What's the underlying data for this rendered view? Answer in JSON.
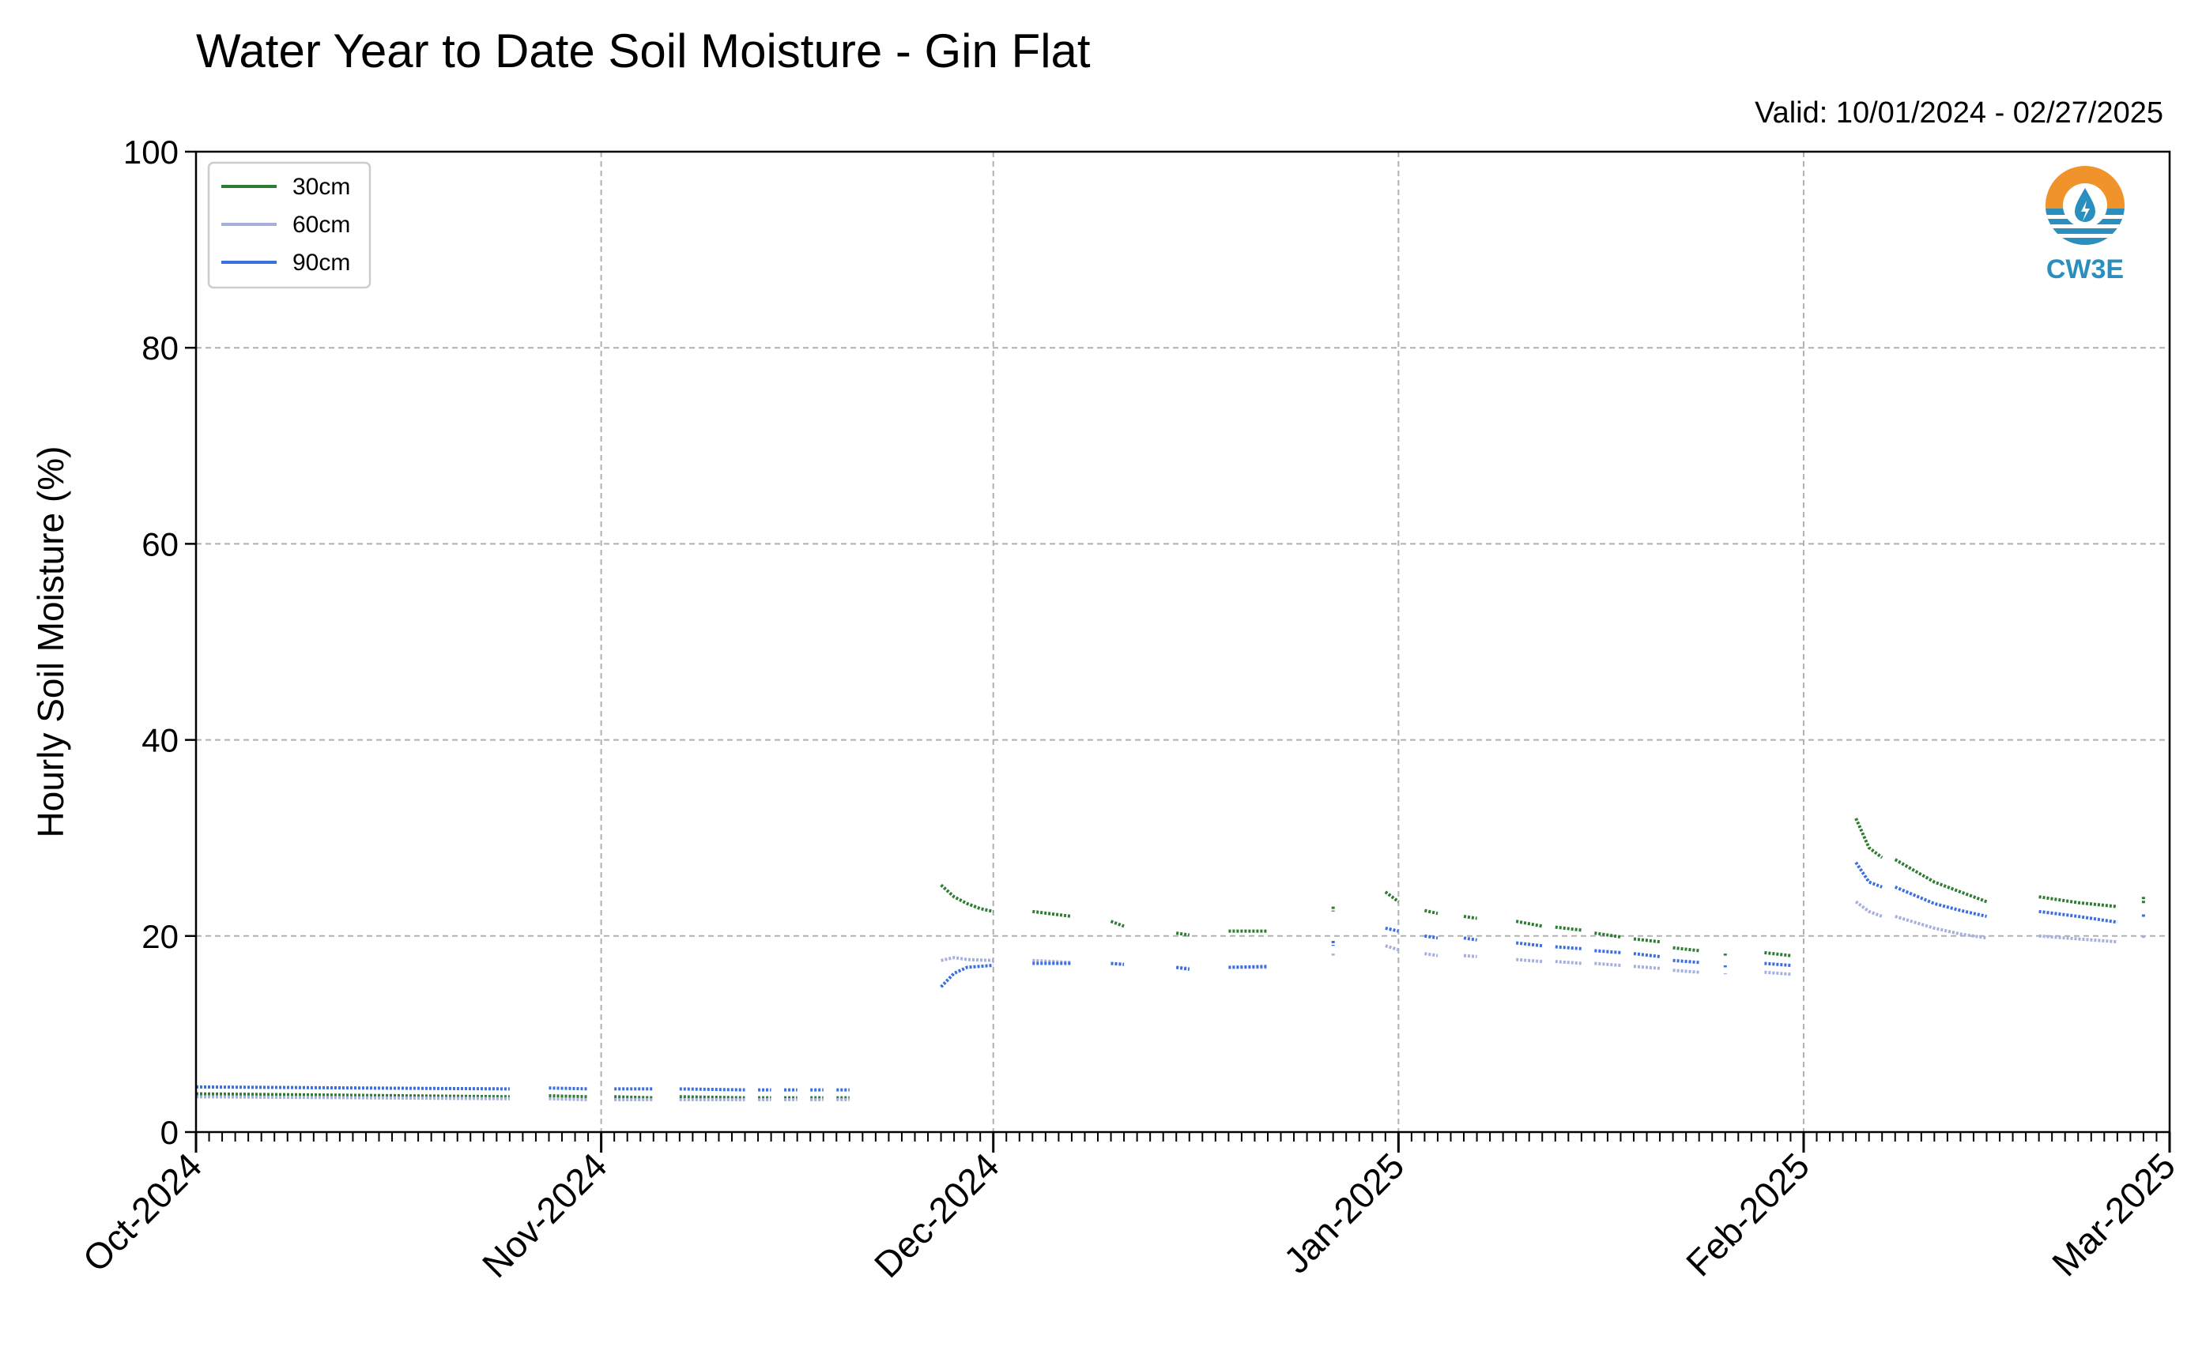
{
  "chart_data": {
    "type": "line",
    "title": "Water Year to Date Soil Moisture - Gin Flat",
    "subtitle": "Valid: 10/01/2024 - 02/27/2025",
    "xlabel": "",
    "ylabel": "Hourly Soil Moisture (%)",
    "ylim": [
      0,
      100
    ],
    "yticks": [
      0,
      20,
      40,
      60,
      80,
      100
    ],
    "xlim": [
      "2024-10-01",
      "2025-03-01"
    ],
    "xticks": [
      "2024-10-01",
      "2024-11-01",
      "2024-12-01",
      "2025-01-01",
      "2025-02-01",
      "2025-03-01"
    ],
    "xtick_labels": [
      "Oct-2024",
      "Nov-2024",
      "Dec-2024",
      "Jan-2025",
      "Feb-2025",
      "Mar-2025"
    ],
    "grid": true,
    "legend_position": "top-left",
    "colors": {
      "30cm": "#2e7d32",
      "60cm": "#a6b0dc",
      "90cm": "#3b6fe0"
    },
    "series": [
      {
        "name": "30cm",
        "segments": [
          [
            [
              "2024-10-01",
              3.9
            ],
            [
              "2024-10-25",
              3.6
            ]
          ],
          [
            [
              "2024-10-28",
              3.7
            ],
            [
              "2024-10-31",
              3.6
            ]
          ],
          [
            [
              "2024-11-02",
              3.6
            ],
            [
              "2024-11-05",
              3.5
            ]
          ],
          [
            [
              "2024-11-07",
              3.6
            ],
            [
              "2024-11-12",
              3.5
            ]
          ],
          [
            [
              "2024-11-13",
              3.5
            ],
            [
              "2024-11-14",
              3.5
            ]
          ],
          [
            [
              "2024-11-15",
              3.5
            ],
            [
              "2024-11-16",
              3.5
            ]
          ],
          [
            [
              "2024-11-17",
              3.5
            ],
            [
              "2024-11-18",
              3.5
            ]
          ],
          [
            [
              "2024-11-19",
              3.5
            ],
            [
              "2024-11-20",
              3.5
            ]
          ],
          [
            [
              "2024-11-27",
              25.2
            ],
            [
              "2024-11-28",
              24.0
            ],
            [
              "2024-11-29",
              23.3
            ],
            [
              "2024-11-30",
              22.8
            ],
            [
              "2024-12-01",
              22.5
            ]
          ],
          [
            [
              "2024-12-04",
              22.5
            ],
            [
              "2024-12-07",
              22.0
            ]
          ],
          [
            [
              "2024-12-10",
              21.5
            ],
            [
              "2024-12-11",
              21.0
            ]
          ],
          [
            [
              "2024-12-15",
              20.3
            ],
            [
              "2024-12-16",
              20.1
            ]
          ],
          [
            [
              "2024-12-19",
              20.5
            ],
            [
              "2024-12-22",
              20.5
            ]
          ],
          [
            [
              "2024-12-27",
              23.0
            ],
            [
              "2024-12-27",
              22.5
            ]
          ],
          [
            [
              "2024-12-31",
              24.5
            ],
            [
              "2025-01-01",
              23.5
            ]
          ],
          [
            [
              "2025-01-03",
              22.6
            ],
            [
              "2025-01-04",
              22.3
            ]
          ],
          [
            [
              "2025-01-06",
              22.0
            ],
            [
              "2025-01-07",
              21.8
            ]
          ],
          [
            [
              "2025-01-10",
              21.5
            ],
            [
              "2025-01-12",
              21.0
            ]
          ],
          [
            [
              "2025-01-13",
              20.9
            ],
            [
              "2025-01-15",
              20.6
            ]
          ],
          [
            [
              "2025-01-16",
              20.3
            ],
            [
              "2025-01-18",
              19.9
            ]
          ],
          [
            [
              "2025-01-19",
              19.7
            ],
            [
              "2025-01-21",
              19.4
            ]
          ],
          [
            [
              "2025-01-22",
              18.8
            ],
            [
              "2025-01-24",
              18.5
            ]
          ],
          [
            [
              "2025-01-26",
              18.2
            ],
            [
              "2025-01-26",
              18.0
            ]
          ],
          [
            [
              "2025-01-29",
              18.3
            ],
            [
              "2025-01-31",
              18.0
            ]
          ],
          [
            [
              "2025-02-05",
              32.0
            ],
            [
              "2025-02-06",
              29.0
            ],
            [
              "2025-02-07",
              28.0
            ]
          ],
          [
            [
              "2025-02-08",
              27.8
            ],
            [
              "2025-02-11",
              25.5
            ],
            [
              "2025-02-13",
              24.5
            ],
            [
              "2025-02-15",
              23.5
            ]
          ],
          [
            [
              "2025-02-19",
              24.0
            ],
            [
              "2025-02-22",
              23.4
            ],
            [
              "2025-02-25",
              23.0
            ]
          ],
          [
            [
              "2025-02-27",
              24.0
            ],
            [
              "2025-02-27",
              23.3
            ]
          ]
        ]
      },
      {
        "name": "60cm",
        "segments": [
          [
            [
              "2024-10-01",
              3.6
            ],
            [
              "2024-10-25",
              3.4
            ]
          ],
          [
            [
              "2024-10-28",
              3.4
            ],
            [
              "2024-10-31",
              3.3
            ]
          ],
          [
            [
              "2024-11-02",
              3.3
            ],
            [
              "2024-11-05",
              3.3
            ]
          ],
          [
            [
              "2024-11-07",
              3.3
            ],
            [
              "2024-11-12",
              3.3
            ]
          ],
          [
            [
              "2024-11-13",
              3.3
            ],
            [
              "2024-11-14",
              3.3
            ]
          ],
          [
            [
              "2024-11-15",
              3.3
            ],
            [
              "2024-11-16",
              3.3
            ]
          ],
          [
            [
              "2024-11-17",
              3.3
            ],
            [
              "2024-11-18",
              3.3
            ]
          ],
          [
            [
              "2024-11-19",
              3.3
            ],
            [
              "2024-11-20",
              3.3
            ]
          ],
          [
            [
              "2024-11-27",
              17.5
            ],
            [
              "2024-11-28",
              17.8
            ],
            [
              "2024-11-29",
              17.6
            ],
            [
              "2024-12-01",
              17.5
            ]
          ],
          [
            [
              "2024-12-04",
              17.5
            ],
            [
              "2024-12-07",
              17.3
            ]
          ],
          [
            [
              "2024-12-10",
              17.2
            ],
            [
              "2024-12-11",
              17.1
            ]
          ],
          [
            [
              "2024-12-15",
              16.8
            ],
            [
              "2024-12-16",
              16.7
            ]
          ],
          [
            [
              "2024-12-19",
              16.8
            ],
            [
              "2024-12-22",
              16.8
            ]
          ],
          [
            [
              "2024-12-27",
              18.2
            ],
            [
              "2024-12-27",
              18.0
            ]
          ],
          [
            [
              "2024-12-31",
              19.0
            ],
            [
              "2025-01-01",
              18.6
            ]
          ],
          [
            [
              "2025-01-03",
              18.2
            ],
            [
              "2025-01-04",
              18.0
            ]
          ],
          [
            [
              "2025-01-06",
              18.0
            ],
            [
              "2025-01-07",
              17.9
            ]
          ],
          [
            [
              "2025-01-10",
              17.6
            ],
            [
              "2025-01-12",
              17.4
            ]
          ],
          [
            [
              "2025-01-13",
              17.4
            ],
            [
              "2025-01-15",
              17.2
            ]
          ],
          [
            [
              "2025-01-16",
              17.2
            ],
            [
              "2025-01-18",
              17.0
            ]
          ],
          [
            [
              "2025-01-19",
              16.9
            ],
            [
              "2025-01-21",
              16.7
            ]
          ],
          [
            [
              "2025-01-22",
              16.5
            ],
            [
              "2025-01-24",
              16.3
            ]
          ],
          [
            [
              "2025-01-26",
              16.2
            ],
            [
              "2025-01-26",
              16.1
            ]
          ],
          [
            [
              "2025-01-29",
              16.3
            ],
            [
              "2025-01-31",
              16.1
            ]
          ],
          [
            [
              "2025-02-05",
              23.5
            ],
            [
              "2025-02-06",
              22.5
            ],
            [
              "2025-02-07",
              22.0
            ]
          ],
          [
            [
              "2025-02-08",
              22.0
            ],
            [
              "2025-02-11",
              20.8
            ],
            [
              "2025-02-13",
              20.2
            ],
            [
              "2025-02-15",
              19.8
            ]
          ],
          [
            [
              "2025-02-19",
              20.0
            ],
            [
              "2025-02-22",
              19.7
            ],
            [
              "2025-02-25",
              19.4
            ]
          ],
          [
            [
              "2025-02-27",
              20.0
            ],
            [
              "2025-02-27",
              19.8
            ]
          ]
        ]
      },
      {
        "name": "90cm",
        "segments": [
          [
            [
              "2024-10-01",
              4.6
            ],
            [
              "2024-10-25",
              4.4
            ]
          ],
          [
            [
              "2024-10-28",
              4.5
            ],
            [
              "2024-10-31",
              4.4
            ]
          ],
          [
            [
              "2024-11-02",
              4.4
            ],
            [
              "2024-11-05",
              4.4
            ]
          ],
          [
            [
              "2024-11-07",
              4.4
            ],
            [
              "2024-11-12",
              4.3
            ]
          ],
          [
            [
              "2024-11-13",
              4.3
            ],
            [
              "2024-11-14",
              4.3
            ]
          ],
          [
            [
              "2024-11-15",
              4.3
            ],
            [
              "2024-11-16",
              4.3
            ]
          ],
          [
            [
              "2024-11-17",
              4.3
            ],
            [
              "2024-11-18",
              4.3
            ]
          ],
          [
            [
              "2024-11-19",
              4.3
            ],
            [
              "2024-11-20",
              4.3
            ]
          ],
          [
            [
              "2024-11-27",
              14.8
            ],
            [
              "2024-11-28",
              16.2
            ],
            [
              "2024-11-29",
              16.8
            ],
            [
              "2024-12-01",
              17.0
            ]
          ],
          [
            [
              "2024-12-04",
              17.2
            ],
            [
              "2024-12-07",
              17.2
            ]
          ],
          [
            [
              "2024-12-10",
              17.2
            ],
            [
              "2024-12-11",
              17.1
            ]
          ],
          [
            [
              "2024-12-15",
              16.8
            ],
            [
              "2024-12-16",
              16.6
            ]
          ],
          [
            [
              "2024-12-19",
              16.8
            ],
            [
              "2024-12-22",
              16.9
            ]
          ],
          [
            [
              "2024-12-27",
              19.5
            ],
            [
              "2024-12-27",
              19.0
            ]
          ],
          [
            [
              "2024-12-31",
              20.8
            ],
            [
              "2025-01-01",
              20.5
            ]
          ],
          [
            [
              "2025-01-03",
              20.0
            ],
            [
              "2025-01-04",
              19.8
            ]
          ],
          [
            [
              "2025-01-06",
              19.8
            ],
            [
              "2025-01-07",
              19.6
            ]
          ],
          [
            [
              "2025-01-10",
              19.3
            ],
            [
              "2025-01-12",
              19.0
            ]
          ],
          [
            [
              "2025-01-13",
              18.9
            ],
            [
              "2025-01-15",
              18.7
            ]
          ],
          [
            [
              "2025-01-16",
              18.5
            ],
            [
              "2025-01-18",
              18.3
            ]
          ],
          [
            [
              "2025-01-19",
              18.2
            ],
            [
              "2025-01-21",
              17.9
            ]
          ],
          [
            [
              "2025-01-22",
              17.5
            ],
            [
              "2025-01-24",
              17.3
            ]
          ],
          [
            [
              "2025-01-26",
              17.0
            ],
            [
              "2025-01-26",
              16.8
            ]
          ],
          [
            [
              "2025-01-29",
              17.2
            ],
            [
              "2025-01-31",
              17.0
            ]
          ],
          [
            [
              "2025-02-05",
              27.5
            ],
            [
              "2025-02-06",
              25.5
            ],
            [
              "2025-02-07",
              25.0
            ]
          ],
          [
            [
              "2025-02-08",
              25.0
            ],
            [
              "2025-02-11",
              23.3
            ],
            [
              "2025-02-13",
              22.6
            ],
            [
              "2025-02-15",
              22.0
            ]
          ],
          [
            [
              "2025-02-19",
              22.5
            ],
            [
              "2025-02-22",
              22.0
            ],
            [
              "2025-02-25",
              21.4
            ]
          ],
          [
            [
              "2025-02-27",
              22.2
            ],
            [
              "2025-02-27",
              21.8
            ]
          ]
        ]
      }
    ]
  },
  "logo": {
    "text": "CW3E"
  }
}
